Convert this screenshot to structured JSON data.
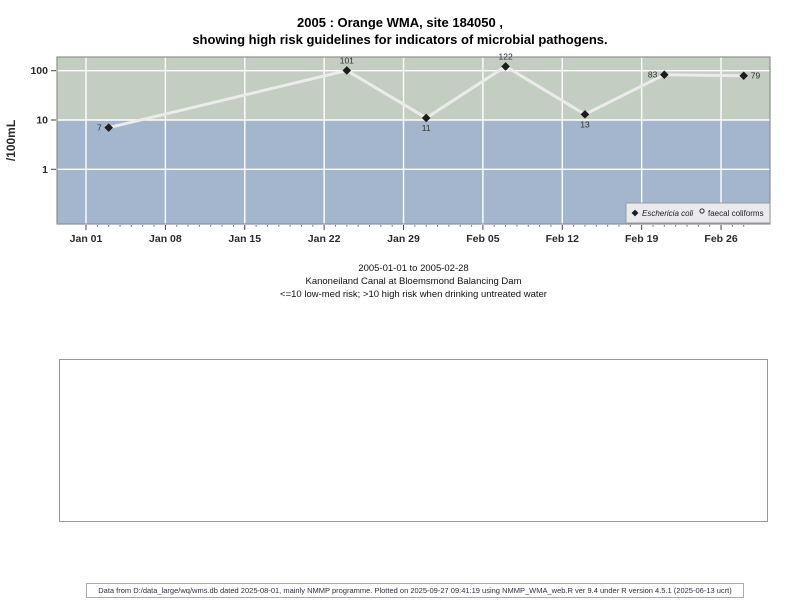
{
  "title": {
    "line1": "2005 : Orange WMA, site 184050 ,",
    "line2": "showing high risk guidelines for indicators of microbial pathogens."
  },
  "caption": {
    "line1": "2005-01-01 to 2005-02-28",
    "line2": "Kanoneiland Canal at Bloemsmond Balancing Dam",
    "line3": "<=10 low-med risk; >10 high risk when drinking untreated water"
  },
  "footer": {
    "text": "Data from D:/data_large/wq/wms.db dated 2025-08-01, mainly NMMP programme. Plotted on 2025-09-27 09:41:19 using NMMP_WMA_web.R ver 9.4 under R version 4.5.1 (2025-06-13 ucrt)"
  },
  "chart_data": {
    "type": "line",
    "ylabel": "/100mL",
    "y_scale": "log10",
    "y_ticks": [
      100,
      10,
      1
    ],
    "x_tick_labels": [
      "Jan 01",
      "Jan 08",
      "Jan 15",
      "Jan 22",
      "Jan 29",
      "Feb 05",
      "Feb 12",
      "Feb 19",
      "Feb 26"
    ],
    "x_tick_days": [
      0,
      7,
      14,
      21,
      28,
      35,
      42,
      49,
      56
    ],
    "x_minor_tick_days_max": 58,
    "risk_threshold": 10,
    "band_colors": {
      "high_risk": "#c3cdc1",
      "low_med_risk": "#a4b5ce"
    },
    "line_color": "#ebebeb",
    "point_color": "#1c1c1c",
    "gridline_color": "#ffffff",
    "series": [
      {
        "name": "Eschericia coli",
        "marker": "filled-diamond",
        "points": [
          {
            "day": 2,
            "value": 7,
            "label": "7",
            "label_side": "left"
          },
          {
            "day": 23,
            "value": 101,
            "label": "101",
            "label_side": "above"
          },
          {
            "day": 30,
            "value": 11,
            "label": "11",
            "label_side": "below"
          },
          {
            "day": 37,
            "value": 122,
            "label": "122",
            "label_side": "above"
          },
          {
            "day": 44,
            "value": 13,
            "label": "13",
            "label_side": "below"
          },
          {
            "day": 51,
            "value": 83,
            "label": "83",
            "label_side": "left"
          },
          {
            "day": 58,
            "value": 79,
            "label": "79",
            "label_side": "right"
          }
        ]
      },
      {
        "name": "faecal coliforms",
        "marker": "open-circle",
        "points": []
      }
    ],
    "legend": {
      "position": "bottom-right",
      "entries": [
        "Eschericia coli",
        "faecal coliforms"
      ]
    }
  }
}
